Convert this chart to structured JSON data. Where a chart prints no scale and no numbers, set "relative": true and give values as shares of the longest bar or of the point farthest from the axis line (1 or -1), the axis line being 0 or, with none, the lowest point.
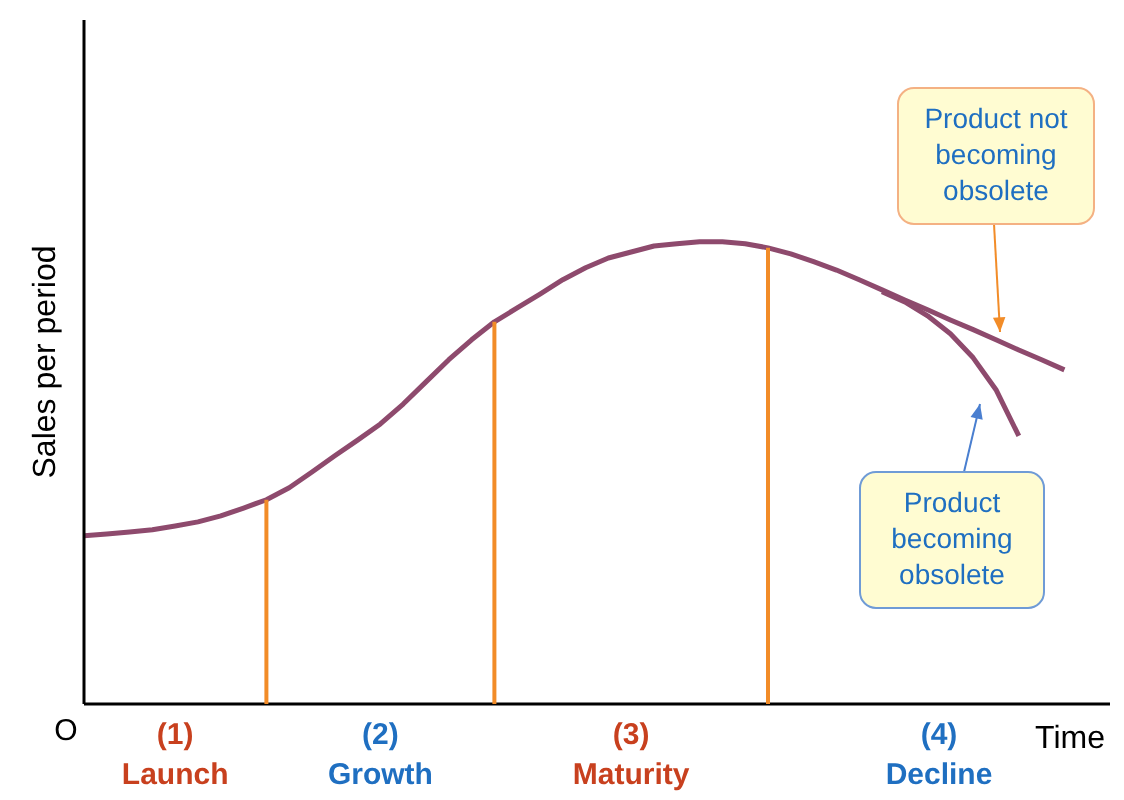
{
  "chart_data": {
    "type": "line",
    "relative": true,
    "xlabel": "Time",
    "ylabel": "Sales per period",
    "categories": [
      null,
      null,
      null,
      null,
      null,
      null,
      null,
      null,
      null,
      null,
      null,
      null,
      null,
      null,
      null,
      null,
      null,
      null,
      null,
      null,
      null,
      null,
      null,
      null,
      null,
      null,
      null,
      null,
      null,
      null,
      null,
      null,
      null,
      null,
      null,
      null,
      null,
      null,
      null,
      null,
      null,
      null,
      null,
      null,
      null,
      null
    ],
    "series": [
      {
        "color": "#8e4a6d",
        "values": [
          0.364,
          0.368,
          0.372,
          0.377,
          0.385,
          0.394,
          0.407,
          0.424,
          0.442,
          0.468,
          0.502,
          0.537,
          0.571,
          0.606,
          0.649,
          0.697,
          0.745,
          0.788,
          0.827,
          0.857,
          0.887,
          0.918,
          0.944,
          0.965,
          0.978,
          0.991,
          0.996,
          1,
          1,
          0.996,
          0.987,
          0.974,
          0.957,
          0.939,
          0.918,
          0.896,
          0.874,
          0.853,
          0.831,
          0.81,
          0.788,
          0.766,
          0.745,
          0.723,
          null,
          null
        ]
      },
      {
        "color": "#8e4a6d",
        "values": [
          null,
          null,
          null,
          null,
          null,
          null,
          null,
          null,
          null,
          null,
          null,
          null,
          null,
          null,
          null,
          null,
          null,
          null,
          null,
          null,
          null,
          null,
          null,
          null,
          null,
          null,
          null,
          null,
          null,
          null,
          null,
          null,
          null,
          null,
          null,
          0.892,
          0.87,
          0.84,
          0.801,
          0.749,
          0.68,
          0.58,
          null,
          null,
          null,
          null
        ]
      }
    ],
    "annotations": [
      "O",
      "(1)\nLaunch",
      "(2)\nGrowth",
      "(3)\nMaturity",
      "(4)\nDecline",
      "Product not\nbecoming\nobsolete",
      "Product\nbecoming\nobsolete"
    ],
    "marker": "none",
    "line_style": "solid",
    "grid": false,
    "legend": false
  }
}
